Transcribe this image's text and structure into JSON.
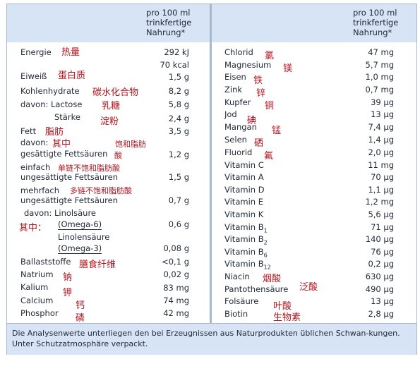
{
  "header": {
    "left_line1": "pro 100 ml",
    "left_line2": "trinkfertige",
    "left_line3": "Nahrung*",
    "right_line1": "pro 100 ml",
    "right_line2": "trinkfertige",
    "right_line3": "Nahrung*"
  },
  "left": {
    "energie": {
      "label": "Energie",
      "cn": "热量",
      "v1": "292 kJ",
      "v2": "70 kcal"
    },
    "eiweiss": {
      "label": "Eiweiß",
      "cn": "蛋白质",
      "value": "1,5 g"
    },
    "kohlenhydrate": {
      "label": "Kohlenhydrate",
      "cn": "碳水化合物",
      "value": "8,2 g"
    },
    "lactose": {
      "label": "davon:  Lactose",
      "cn": "乳糖",
      "value": "5,8 g"
    },
    "staerke": {
      "label": "Stärke",
      "cn": "淀粉",
      "value": "2,4 g"
    },
    "fett": {
      "label": "Fett",
      "cn": "脂肪",
      "value": "3,5 g"
    },
    "davon_fett": {
      "label": "davon:",
      "cn": "其中",
      "cn2": "饱和脂肪"
    },
    "gesaettigte": {
      "label": "gesättigte Fettsäuren",
      "cn": "酸",
      "value": "1,2 g"
    },
    "einfach": {
      "label": "einfach",
      "cn": "单链不饱和脂肪酸",
      "label2": "ungesättigte Fettsäuren",
      "value": "1,5 g"
    },
    "mehrfach": {
      "label": "mehrfach",
      "cn": "多链不饱和脂肪酸",
      "label2": "ungesättigte Fettsäuren",
      "value": "0,7 g"
    },
    "linolsaeure": {
      "label": "davon:  Linolsäure",
      "cn": "其中：",
      "label2": "(Omega-6)",
      "value": "0,6 g"
    },
    "linolensaeure": {
      "label": "Linolensäure",
      "label2": "(Omega-3)",
      "value": "0,08 g"
    },
    "ballaststoffe": {
      "label": "Ballaststoffe",
      "cn": "膳食纤维",
      "value": "<0,1 g"
    },
    "natrium": {
      "label": "Natrium",
      "cn": "钠",
      "value": "0,02 g"
    },
    "kalium": {
      "label": "Kalium",
      "cn": "钾",
      "value": "83 mg"
    },
    "calcium": {
      "label": "Calcium",
      "cn": "钙",
      "value": "74 mg"
    },
    "phosphor": {
      "label": "Phosphor",
      "cn": "磷",
      "value": "42 mg"
    }
  },
  "right": {
    "chlorid": {
      "label": "Chlorid",
      "cn": "氯",
      "value": "47 mg"
    },
    "magnesium": {
      "label": "Magnesium",
      "cn": "镁",
      "value": "5,7 mg"
    },
    "eisen": {
      "label": "Eisen",
      "cn": "铁",
      "value": "1,0 mg"
    },
    "zink": {
      "label": "Zink",
      "cn": "锌",
      "value": "0,7 mg"
    },
    "kupfer": {
      "label": "Kupfer",
      "cn": "铜",
      "value": "39 µg"
    },
    "jod": {
      "label": "Jod",
      "cn": "碘",
      "value": "13 µg"
    },
    "mangan": {
      "label": "Mangan",
      "cn": "锰",
      "value": "7,4 µg"
    },
    "selen": {
      "label": "Selen",
      "cn": "硒",
      "value": "1,4 µg"
    },
    "fluorid": {
      "label": "Fluorid",
      "cn": "氟",
      "value": "2,0 µg"
    },
    "vit_c": {
      "label": "Vitamin C",
      "value": "11 mg"
    },
    "vit_a": {
      "label": "Vitamin A",
      "value": "70 µg"
    },
    "vit_d": {
      "label": "Vitamin D",
      "value": "1,1 µg"
    },
    "vit_e": {
      "label": "Vitamin E",
      "value": "1,2 mg"
    },
    "vit_k": {
      "label": "Vitamin K",
      "value": "5,6 µg"
    },
    "vit_b1": {
      "label": "Vitamin B",
      "sub": "1",
      "value": "71 µg"
    },
    "vit_b2": {
      "label": "Vitamin B",
      "sub": "2",
      "value": "140 µg"
    },
    "vit_b6": {
      "label": "Vitamin B",
      "sub": "6",
      "value": "76 µg"
    },
    "vit_b12": {
      "label": "Vitamin B",
      "sub": "12",
      "value": "0,2 µg"
    },
    "niacin": {
      "label": "Niacin",
      "cn": "烟酸",
      "value": "630 µg"
    },
    "pantothen": {
      "label": "Pantothensäure",
      "cn": "泛酸",
      "value": "490 µg"
    },
    "folsaeure": {
      "label": "Folsäure",
      "cn": "叶酸",
      "value": "13 µg"
    },
    "biotin": {
      "label": "Biotin",
      "cn": "生物素",
      "value": "2,8 µg"
    }
  },
  "footer": {
    "text": "Die Analysenwerte unterliegen den bei Erzeugnissen aus Naturprodukten üblichen Schwan-kungen. Unter Schutzatmosphäre verpackt."
  }
}
